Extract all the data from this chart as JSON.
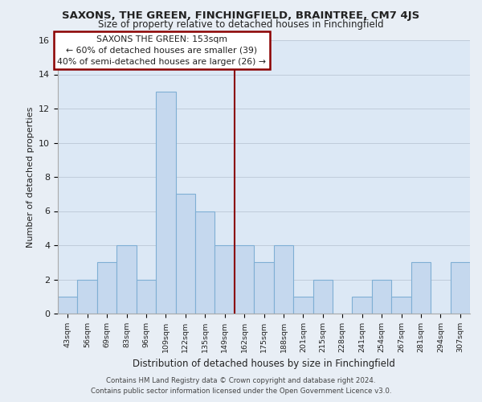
{
  "title": "SAXONS, THE GREEN, FINCHINGFIELD, BRAINTREE, CM7 4JS",
  "subtitle": "Size of property relative to detached houses in Finchingfield",
  "xlabel": "Distribution of detached houses by size in Finchingfield",
  "ylabel": "Number of detached properties",
  "categories": [
    "43sqm",
    "56sqm",
    "69sqm",
    "83sqm",
    "96sqm",
    "109sqm",
    "122sqm",
    "135sqm",
    "149sqm",
    "162sqm",
    "175sqm",
    "188sqm",
    "201sqm",
    "215sqm",
    "228sqm",
    "241sqm",
    "254sqm",
    "267sqm",
    "281sqm",
    "294sqm",
    "307sqm"
  ],
  "values": [
    1,
    2,
    3,
    4,
    2,
    13,
    7,
    6,
    4,
    4,
    3,
    4,
    1,
    2,
    0,
    1,
    2,
    1,
    3,
    0,
    3
  ],
  "bar_color": "#c5d8ee",
  "bar_edge_color": "#7fafd4",
  "vline_x": 8.5,
  "vline_color": "#8b0000",
  "annotation_title": "SAXONS THE GREEN: 153sqm",
  "annotation_line1": "← 60% of detached houses are smaller (39)",
  "annotation_line2": "40% of semi-detached houses are larger (26) →",
  "annotation_box_color": "#ffffff",
  "annotation_box_edge": "#8b0000",
  "ylim": [
    0,
    16
  ],
  "yticks": [
    0,
    2,
    4,
    6,
    8,
    10,
    12,
    14,
    16
  ],
  "footer_line1": "Contains HM Land Registry data © Crown copyright and database right 2024.",
  "footer_line2": "Contains public sector information licensed under the Open Government Licence v3.0.",
  "background_color": "#e8eef5",
  "plot_bg_color": "#dce8f5",
  "grid_color": "#c0ccda"
}
